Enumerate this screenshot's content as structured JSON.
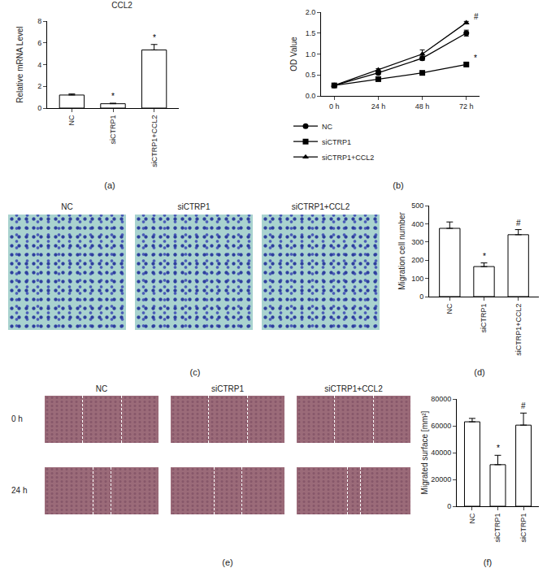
{
  "chart_data": [
    {
      "type": "bar",
      "label": "(a)",
      "title": "CCL2",
      "y_label": "Relative mRNA Level",
      "categories": [
        "NC",
        "siCTRP1",
        "siCTRP1+CCL2"
      ],
      "values": [
        1.2,
        0.4,
        5.35
      ],
      "errors": [
        0.1,
        0.05,
        0.5
      ],
      "significance": [
        null,
        "*",
        "*"
      ],
      "color": "#ffffff",
      "ylim": [
        0,
        8
      ],
      "yticks": [
        0,
        2,
        4,
        6,
        8
      ],
      "grid": false
    },
    {
      "type": "line",
      "label": "(b)",
      "y_label": "OD Value",
      "categories": [
        "0 h",
        "24 h",
        "48 h",
        "72 h"
      ],
      "series": [
        {
          "name": "NC",
          "color": "#000000",
          "marker": "circle",
          "values": [
            0.25,
            0.55,
            0.9,
            1.5
          ],
          "errors": [
            0.02,
            0.03,
            0.05,
            0.07
          ],
          "significance": [
            null,
            null,
            null,
            null
          ]
        },
        {
          "name": "siCTRP1",
          "color": "#000000",
          "marker": "square",
          "values": [
            0.25,
            0.4,
            0.55,
            0.75
          ],
          "errors": [
            0.02,
            0.03,
            0.03,
            0.04
          ],
          "significance": [
            null,
            null,
            null,
            "*"
          ]
        },
        {
          "name": "siCTRP1+CCL2",
          "color": "#000000",
          "marker": "triangle-up",
          "values": [
            0.25,
            0.62,
            1.0,
            1.75
          ],
          "errors": [
            0.02,
            0.03,
            0.1,
            0.03
          ],
          "significance": [
            null,
            null,
            null,
            "#"
          ]
        }
      ],
      "ylim": [
        0,
        2
      ],
      "yticks": [
        {
          "value": 0,
          "label": "0.0"
        },
        {
          "value": 0.5,
          "label": "0.5"
        },
        {
          "value": 1,
          "label": "1.0"
        },
        {
          "value": 1.5,
          "label": "1.5"
        },
        {
          "value": 2,
          "label": "2.0"
        }
      ],
      "legend": "bottom",
      "grid": false
    },
    {
      "type": "bar",
      "label": "(d)",
      "y_label": "Migration cell number",
      "categories": [
        "NC",
        "siCTRP1",
        "siCTRP1+CCL2"
      ],
      "values": [
        375,
        165,
        340
      ],
      "errors": [
        35,
        20,
        28
      ],
      "significance": [
        null,
        "*",
        "#"
      ],
      "color": "#ffffff",
      "ylim": [
        0,
        500
      ],
      "yticks": [
        0,
        100,
        200,
        300,
        400,
        500
      ],
      "grid": false
    },
    {
      "type": "bar",
      "label": "(f)",
      "y_label": "Migrated surface [mm²]",
      "categories": [
        "NC",
        "siCTRP1",
        "siCTRP1"
      ],
      "values": [
        63000,
        31000,
        60500
      ],
      "errors": [
        2500,
        7000,
        9000
      ],
      "significance": [
        null,
        "*",
        "#"
      ],
      "color": "#ffffff",
      "ylim": [
        0,
        80000
      ],
      "yticks": [
        0,
        20000,
        40000,
        60000,
        80000
      ],
      "grid": false
    }
  ],
  "image_panels": [
    {
      "label": "(c)",
      "columns": [
        "NC",
        "siCTRP1",
        "siCTRP1+CCL2"
      ]
    },
    {
      "label": "(e)",
      "columns": [
        "NC",
        "siCTRP1",
        "siCTRP1+CCL2"
      ],
      "rows": [
        "0 h",
        "24 h"
      ]
    }
  ]
}
